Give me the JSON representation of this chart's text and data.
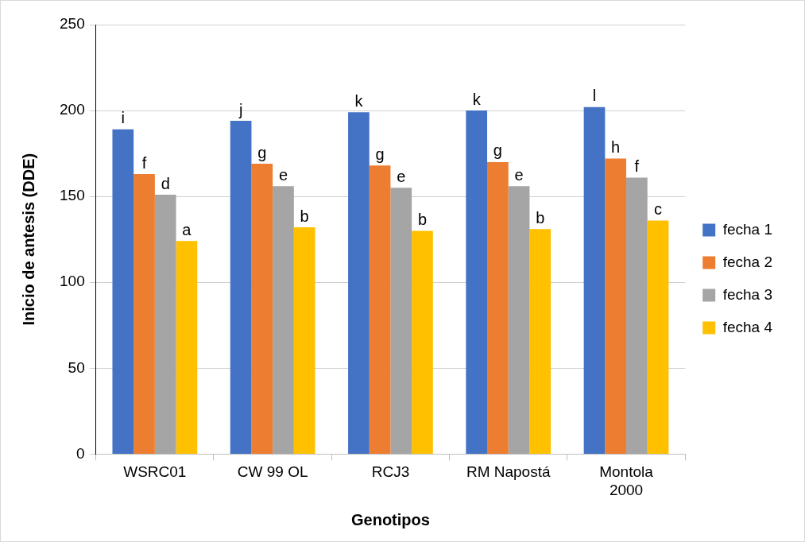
{
  "chart_data": {
    "type": "bar",
    "xlabel": "Genotipos",
    "ylabel": "Inicio de antesis (DDE)",
    "categories": [
      "WSRC01",
      "CW 99 OL",
      "RCJ3",
      "RM Napostá",
      "Montola 2000"
    ],
    "series": [
      {
        "name": "fecha 1",
        "color": "#4472c4",
        "values": [
          189,
          194,
          199,
          200,
          202
        ],
        "value_labels": [
          "i",
          "j",
          "k",
          "k",
          "l"
        ]
      },
      {
        "name": "fecha 2",
        "color": "#ed7d31",
        "values": [
          163,
          169,
          168,
          170,
          172
        ],
        "value_labels": [
          "f",
          "g",
          "g",
          "g",
          "h"
        ]
      },
      {
        "name": "fecha 3",
        "color": "#a5a5a5",
        "values": [
          151,
          156,
          155,
          156,
          161
        ],
        "value_labels": [
          "d",
          "e",
          "e",
          "e",
          "f"
        ]
      },
      {
        "name": "fecha 4",
        "color": "#ffc000",
        "values": [
          124,
          132,
          130,
          131,
          136
        ],
        "value_labels": [
          "a",
          "b",
          "b",
          "b",
          "c"
        ]
      }
    ],
    "ylim": [
      0,
      250
    ],
    "yticks": [
      0,
      50,
      100,
      150,
      200,
      250
    ],
    "grid": "y",
    "legend": "right"
  }
}
